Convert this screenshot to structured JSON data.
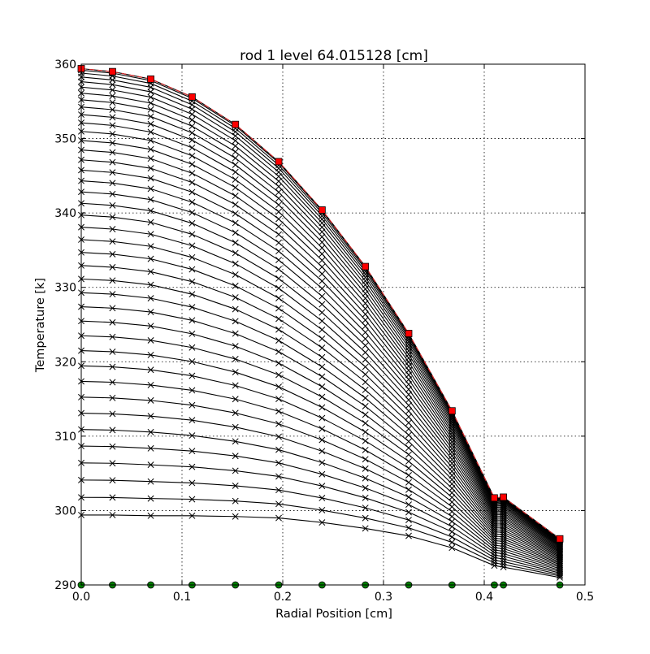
{
  "chart_data": {
    "type": "line",
    "title": "rod 1 level 64.015128 [cm]",
    "xlabel": "Radial Position [cm]",
    "ylabel": "Temperature [k]",
    "xlim": [
      0.0,
      0.5
    ],
    "ylim": [
      290,
      360
    ],
    "xticks": [
      "0.0",
      "0.1",
      "0.2",
      "0.3",
      "0.4",
      "0.5"
    ],
    "yticks": [
      "290",
      "300",
      "310",
      "320",
      "330",
      "340",
      "350",
      "360"
    ],
    "grid": true,
    "grid_style": "dotted",
    "x": [
      0.0,
      0.031,
      0.069,
      0.11,
      0.153,
      0.196,
      0.239,
      0.282,
      0.325,
      0.368,
      0.41,
      0.419,
      0.475
    ],
    "transient_profiles_count": 40,
    "series": [
      {
        "role": "transient",
        "color": "#000000",
        "marker": "x",
        "values": [
          299.4,
          299.4,
          299.3,
          299.3,
          299.2,
          299.0,
          298.4,
          297.6,
          296.6,
          295.0,
          292.6,
          292.4,
          291.0
        ]
      },
      {
        "role": "final",
        "color": "#d62728",
        "line_style": "dashed",
        "marker": "square",
        "values": [
          359.4,
          359.0,
          358.0,
          355.6,
          351.9,
          346.9,
          340.4,
          332.8,
          323.8,
          313.4,
          301.7,
          301.8,
          296.2
        ]
      },
      {
        "role": "nodes",
        "color": "#0a7d0a",
        "marker": "circle",
        "values": [
          290,
          290,
          290,
          290,
          290,
          290,
          290,
          290,
          290,
          290,
          290,
          290,
          290
        ]
      }
    ]
  }
}
